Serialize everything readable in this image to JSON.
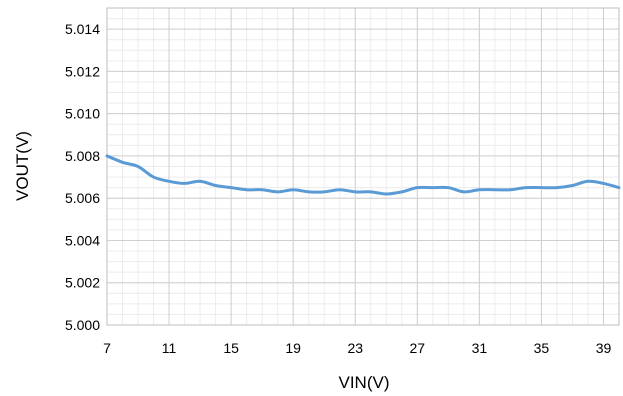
{
  "chart_data": {
    "type": "line",
    "title": "",
    "xlabel": "VIN(V)",
    "ylabel": "VOUT(V)",
    "xlim": [
      7,
      40
    ],
    "ylim": [
      5.0,
      5.015
    ],
    "x_ticks": [
      7,
      11,
      15,
      19,
      23,
      27,
      31,
      35,
      39
    ],
    "y_ticks": [
      5.0,
      5.002,
      5.004,
      5.006,
      5.008,
      5.01,
      5.012,
      5.014
    ],
    "y_tick_labels": [
      "5.000",
      "5.002",
      "5.004",
      "5.006",
      "5.008",
      "5.010",
      "5.012",
      "5.014"
    ],
    "grid": true,
    "legend": "none",
    "series": [
      {
        "color": "#5b9bd5",
        "x": [
          7,
          8,
          9,
          10,
          11,
          12,
          13,
          14,
          15,
          16,
          17,
          18,
          19,
          20,
          21,
          22,
          23,
          24,
          25,
          26,
          27,
          28,
          29,
          30,
          31,
          32,
          33,
          34,
          35,
          36,
          37,
          38,
          39,
          40
        ],
        "values": [
          5.008,
          5.0077,
          5.0075,
          5.007,
          5.0068,
          5.0067,
          5.0068,
          5.0066,
          5.0065,
          5.0064,
          5.0064,
          5.0063,
          5.0064,
          5.0063,
          5.0063,
          5.0064,
          5.0063,
          5.0063,
          5.0062,
          5.0063,
          5.0065,
          5.0065,
          5.0065,
          5.0063,
          5.0064,
          5.0064,
          5.0064,
          5.0065,
          5.0065,
          5.0065,
          5.0066,
          5.0068,
          5.0067,
          5.0065
        ]
      }
    ]
  }
}
